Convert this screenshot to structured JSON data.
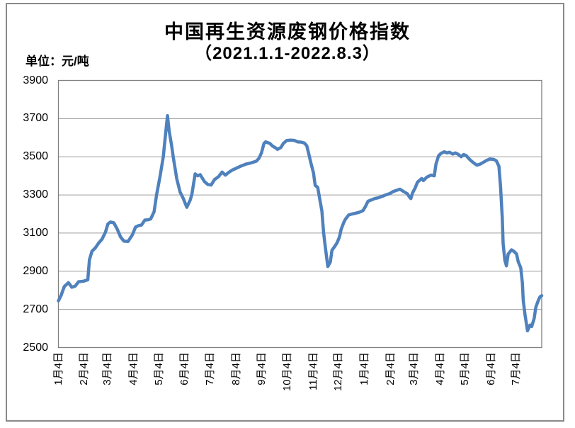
{
  "page": {
    "title": "中国再生资源废钢价格指数",
    "subtitle": "（2021.1.1-2022.8.3）",
    "unit_label": "单位：元/吨"
  },
  "colors": {
    "background": "#FFFFFF",
    "line": "#4F81BD",
    "gridline": "#9B9B9B",
    "axis": "#7F7F7F",
    "outer_border": "#8A8A8A",
    "text": "#000000"
  },
  "chart_data": {
    "type": "line",
    "title": "中国再生资源废钢价格指数（2021.1.1-2022.8.3）",
    "xlabel": "",
    "ylabel": "元/吨",
    "ylim": [
      2500,
      3900
    ],
    "y_tick_step": 200,
    "y_ticks": [
      3900,
      3700,
      3500,
      3300,
      3100,
      2900,
      2700,
      2500
    ],
    "grid": true,
    "legend": "none",
    "x_start": "2021-01-04",
    "x_end": "2022-08-03",
    "x_total_days": 576,
    "x_ticks": [
      {
        "day": 0,
        "label": "1月4日"
      },
      {
        "day": 31,
        "label": "2月4日"
      },
      {
        "day": 59,
        "label": "3月4日"
      },
      {
        "day": 90,
        "label": "4月4日"
      },
      {
        "day": 120,
        "label": "5月4日"
      },
      {
        "day": 151,
        "label": "6月4日"
      },
      {
        "day": 181,
        "label": "7月4日"
      },
      {
        "day": 212,
        "label": "8月4日"
      },
      {
        "day": 243,
        "label": "9月4日"
      },
      {
        "day": 273,
        "label": "10月4日"
      },
      {
        "day": 304,
        "label": "11月4日"
      },
      {
        "day": 334,
        "label": "12月4日"
      },
      {
        "day": 365,
        "label": "1月4日"
      },
      {
        "day": 396,
        "label": "2月4日"
      },
      {
        "day": 424,
        "label": "3月4日"
      },
      {
        "day": 455,
        "label": "4月4日"
      },
      {
        "day": 485,
        "label": "5月4日"
      },
      {
        "day": 516,
        "label": "6月4日"
      },
      {
        "day": 546,
        "label": "7月4日"
      }
    ],
    "series": [
      {
        "name": "废钢价格指数",
        "color": "#4F81BD",
        "points": [
          [
            0,
            2745
          ],
          [
            3,
            2772
          ],
          [
            7,
            2820
          ],
          [
            12,
            2840
          ],
          [
            16,
            2816
          ],
          [
            20,
            2822
          ],
          [
            24,
            2845
          ],
          [
            30,
            2848
          ],
          [
            35,
            2855
          ],
          [
            37,
            2960
          ],
          [
            40,
            3005
          ],
          [
            44,
            3022
          ],
          [
            48,
            3048
          ],
          [
            52,
            3068
          ],
          [
            56,
            3105
          ],
          [
            59,
            3148
          ],
          [
            62,
            3158
          ],
          [
            66,
            3154
          ],
          [
            70,
            3122
          ],
          [
            74,
            3080
          ],
          [
            78,
            3058
          ],
          [
            83,
            3056
          ],
          [
            88,
            3090
          ],
          [
            92,
            3132
          ],
          [
            96,
            3140
          ],
          [
            99,
            3142
          ],
          [
            103,
            3168
          ],
          [
            107,
            3170
          ],
          [
            110,
            3174
          ],
          [
            114,
            3212
          ],
          [
            117,
            3300
          ],
          [
            121,
            3395
          ],
          [
            125,
            3500
          ],
          [
            127,
            3590
          ],
          [
            130,
            3715
          ],
          [
            132,
            3635
          ],
          [
            135,
            3555
          ],
          [
            137,
            3495
          ],
          [
            141,
            3385
          ],
          [
            145,
            3315
          ],
          [
            149,
            3280
          ],
          [
            153,
            3235
          ],
          [
            157,
            3272
          ],
          [
            159,
            3302
          ],
          [
            163,
            3410
          ],
          [
            166,
            3400
          ],
          [
            169,
            3406
          ],
          [
            174,
            3370
          ],
          [
            178,
            3355
          ],
          [
            182,
            3352
          ],
          [
            186,
            3380
          ],
          [
            191,
            3396
          ],
          [
            195,
            3420
          ],
          [
            199,
            3404
          ],
          [
            203,
            3418
          ],
          [
            207,
            3430
          ],
          [
            212,
            3440
          ],
          [
            218,
            3452
          ],
          [
            224,
            3462
          ],
          [
            230,
            3468
          ],
          [
            236,
            3477
          ],
          [
            239,
            3492
          ],
          [
            242,
            3520
          ],
          [
            245,
            3570
          ],
          [
            247,
            3578
          ],
          [
            252,
            3570
          ],
          [
            255,
            3557
          ],
          [
            259,
            3546
          ],
          [
            261,
            3539
          ],
          [
            265,
            3548
          ],
          [
            268,
            3570
          ],
          [
            272,
            3585
          ],
          [
            277,
            3587
          ],
          [
            281,
            3586
          ],
          [
            285,
            3578
          ],
          [
            289,
            3577
          ],
          [
            293,
            3572
          ],
          [
            296,
            3558
          ],
          [
            298,
            3522
          ],
          [
            301,
            3465
          ],
          [
            304,
            3415
          ],
          [
            306,
            3350
          ],
          [
            309,
            3340
          ],
          [
            311,
            3290
          ],
          [
            314,
            3215
          ],
          [
            316,
            3105
          ],
          [
            318,
            3030
          ],
          [
            320,
            2960
          ],
          [
            321,
            2925
          ],
          [
            324,
            2948
          ],
          [
            326,
            3010
          ],
          [
            329,
            3028
          ],
          [
            332,
            3048
          ],
          [
            335,
            3080
          ],
          [
            337,
            3120
          ],
          [
            340,
            3155
          ],
          [
            342,
            3172
          ],
          [
            346,
            3195
          ],
          [
            350,
            3200
          ],
          [
            355,
            3205
          ],
          [
            359,
            3210
          ],
          [
            363,
            3218
          ],
          [
            366,
            3240
          ],
          [
            369,
            3267
          ],
          [
            373,
            3274
          ],
          [
            377,
            3281
          ],
          [
            382,
            3286
          ],
          [
            386,
            3293
          ],
          [
            390,
            3300
          ],
          [
            395,
            3307
          ],
          [
            399,
            3318
          ],
          [
            403,
            3324
          ],
          [
            407,
            3330
          ],
          [
            411,
            3319
          ],
          [
            416,
            3306
          ],
          [
            418,
            3291
          ],
          [
            420,
            3281
          ],
          [
            422,
            3310
          ],
          [
            425,
            3335
          ],
          [
            428,
            3367
          ],
          [
            433,
            3386
          ],
          [
            435,
            3375
          ],
          [
            439,
            3393
          ],
          [
            444,
            3404
          ],
          [
            448,
            3400
          ],
          [
            450,
            3462
          ],
          [
            453,
            3505
          ],
          [
            456,
            3518
          ],
          [
            460,
            3526
          ],
          [
            463,
            3520
          ],
          [
            466,
            3524
          ],
          [
            470,
            3514
          ],
          [
            473,
            3520
          ],
          [
            476,
            3514
          ],
          [
            480,
            3500
          ],
          [
            483,
            3512
          ],
          [
            486,
            3506
          ],
          [
            489,
            3491
          ],
          [
            492,
            3478
          ],
          [
            496,
            3464
          ],
          [
            499,
            3456
          ],
          [
            503,
            3462
          ],
          [
            506,
            3470
          ],
          [
            510,
            3480
          ],
          [
            514,
            3488
          ],
          [
            519,
            3486
          ],
          [
            522,
            3478
          ],
          [
            525,
            3450
          ],
          [
            527,
            3340
          ],
          [
            529,
            3180
          ],
          [
            530,
            3045
          ],
          [
            532,
            2958
          ],
          [
            534,
            2928
          ],
          [
            536,
            2990
          ],
          [
            540,
            3012
          ],
          [
            543,
            3004
          ],
          [
            546,
            2990
          ],
          [
            548,
            2950
          ],
          [
            551,
            2918
          ],
          [
            553,
            2838
          ],
          [
            554,
            2748
          ],
          [
            556,
            2675
          ],
          [
            558,
            2618
          ],
          [
            559,
            2588
          ],
          [
            562,
            2618
          ],
          [
            564,
            2610
          ],
          [
            567,
            2652
          ],
          [
            569,
            2712
          ],
          [
            572,
            2748
          ],
          [
            574,
            2766
          ],
          [
            576,
            2772
          ]
        ]
      }
    ]
  }
}
